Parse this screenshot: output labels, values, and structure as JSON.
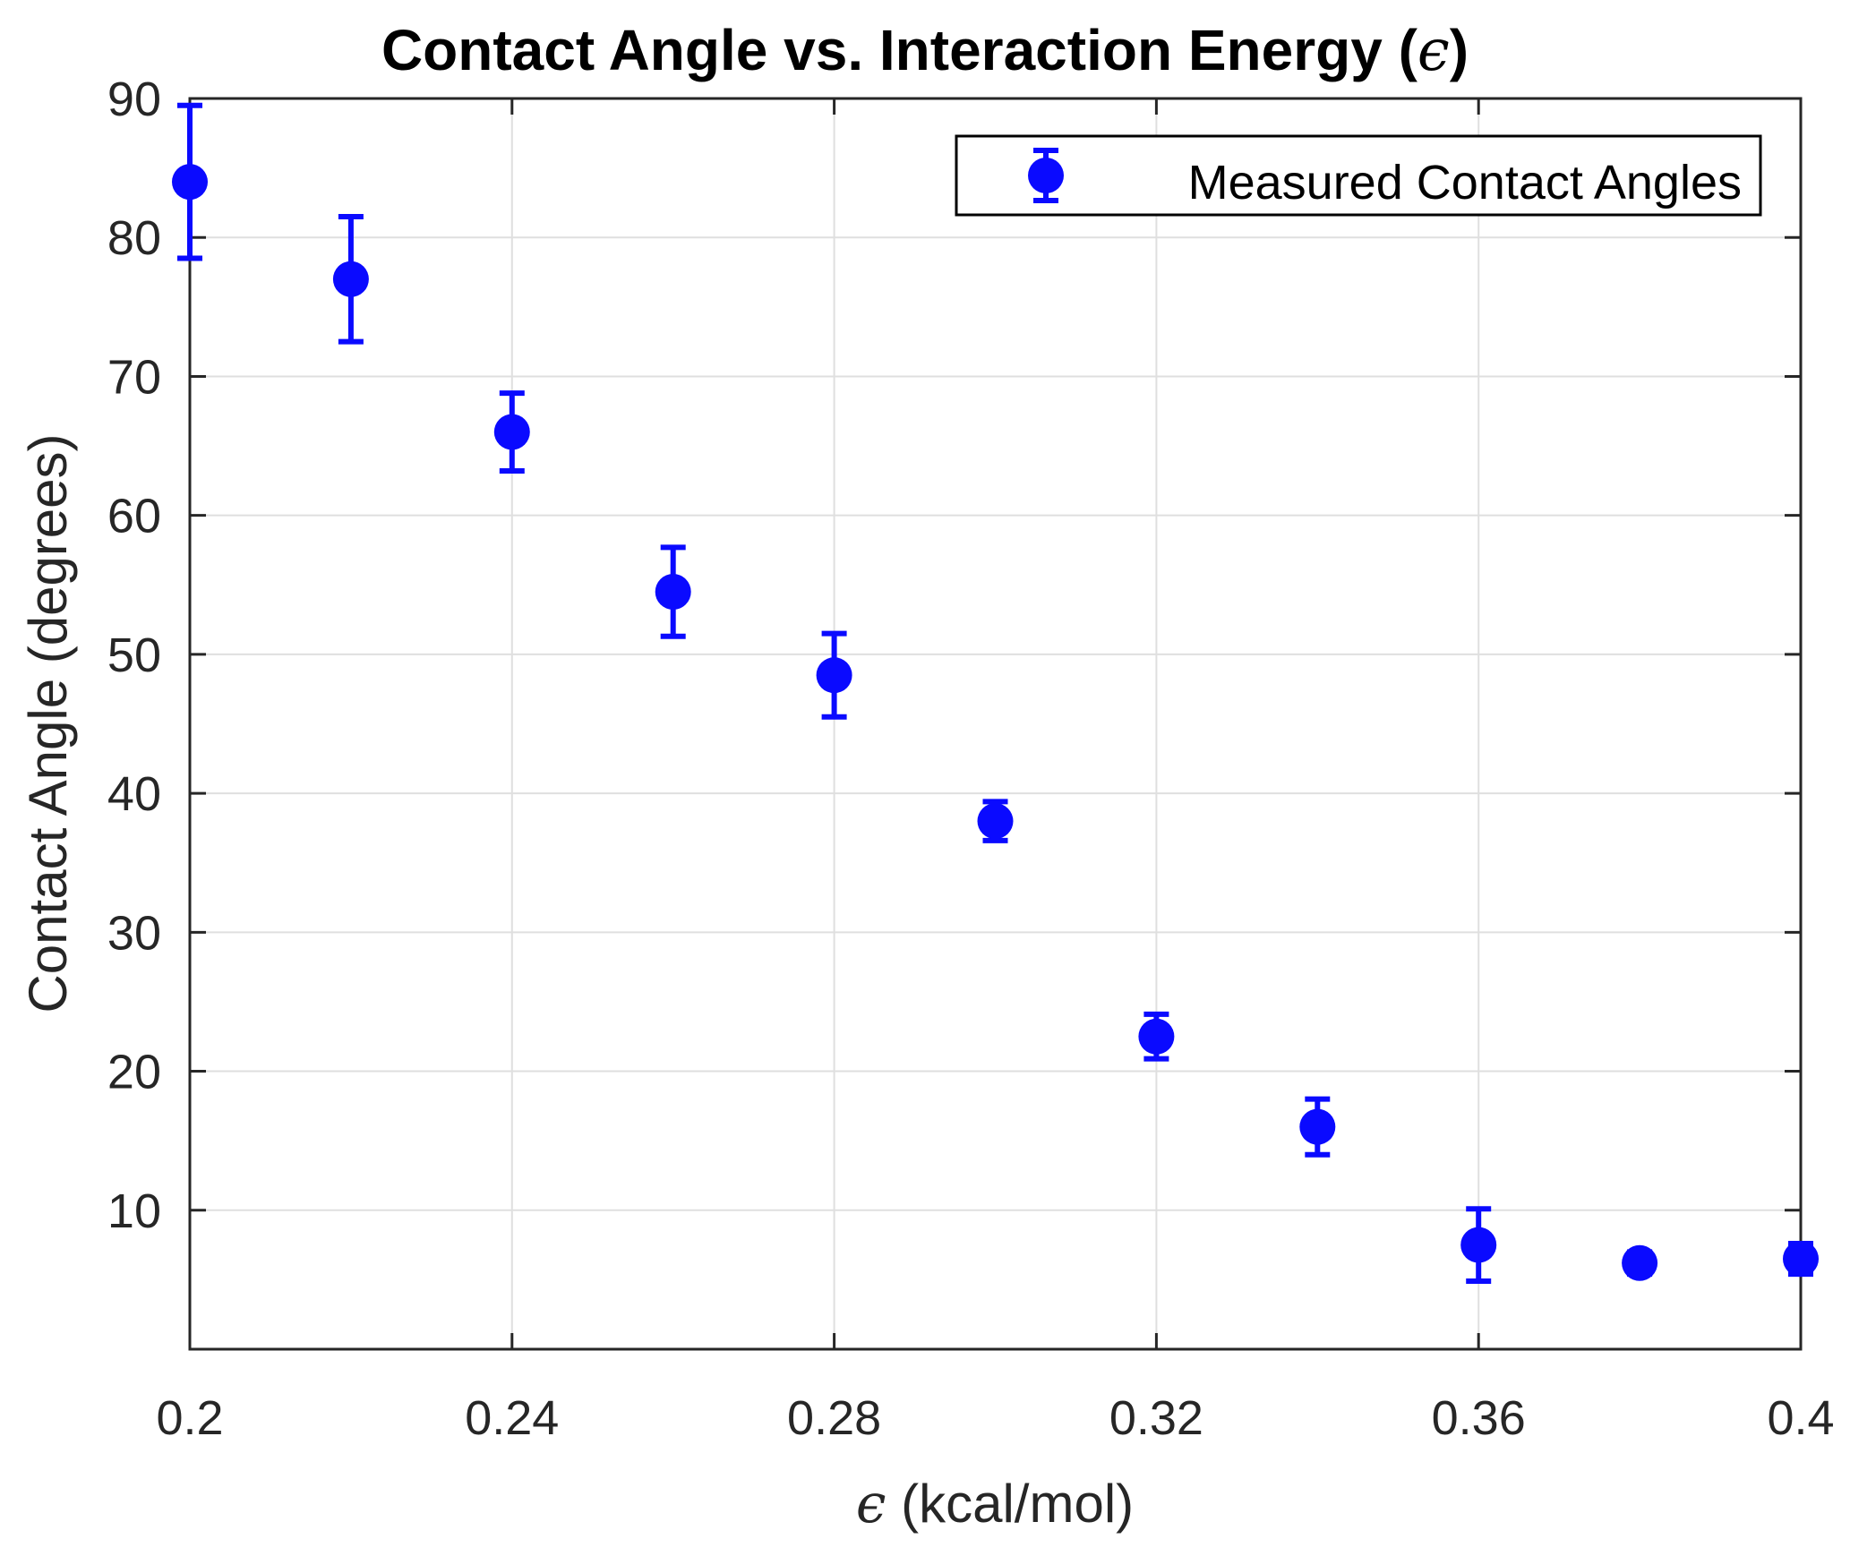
{
  "chart_data": {
    "type": "scatter",
    "title": "Contact Angle vs. Interaction Energy (",
    "title_symbol": "ϵ",
    "title_suffix": ")",
    "xlabel_symbol": "ϵ",
    "xlabel": " (kcal/mol)",
    "ylabel": "Contact Angle (degrees)",
    "xlim": [
      0.2,
      0.4
    ],
    "ylim": [
      0,
      90
    ],
    "xticks": [
      0.2,
      0.24,
      0.28,
      0.32,
      0.36,
      0.4
    ],
    "xtick_labels": [
      "0.2",
      "0.24",
      "0.28",
      "0.32",
      "0.36",
      "0.4"
    ],
    "yticks": [
      10,
      20,
      30,
      40,
      50,
      60,
      70,
      80,
      90
    ],
    "ytick_labels": [
      "10",
      "20",
      "30",
      "40",
      "50",
      "60",
      "70",
      "80",
      "90"
    ],
    "grid": true,
    "legend_position": "top-right",
    "series": [
      {
        "name": "Measured Contact Angles",
        "color": "#0a0aff",
        "x": [
          0.2,
          0.22,
          0.24,
          0.26,
          0.28,
          0.3,
          0.32,
          0.34,
          0.36,
          0.38,
          0.4
        ],
        "y": [
          84,
          77,
          66,
          54.5,
          48.5,
          38,
          22.5,
          16,
          7.5,
          6.2,
          6.5
        ],
        "err": [
          5.5,
          4.5,
          2.8,
          3.2,
          3.0,
          1.4,
          1.6,
          2.0,
          2.6,
          0.8,
          1.1
        ]
      }
    ]
  }
}
